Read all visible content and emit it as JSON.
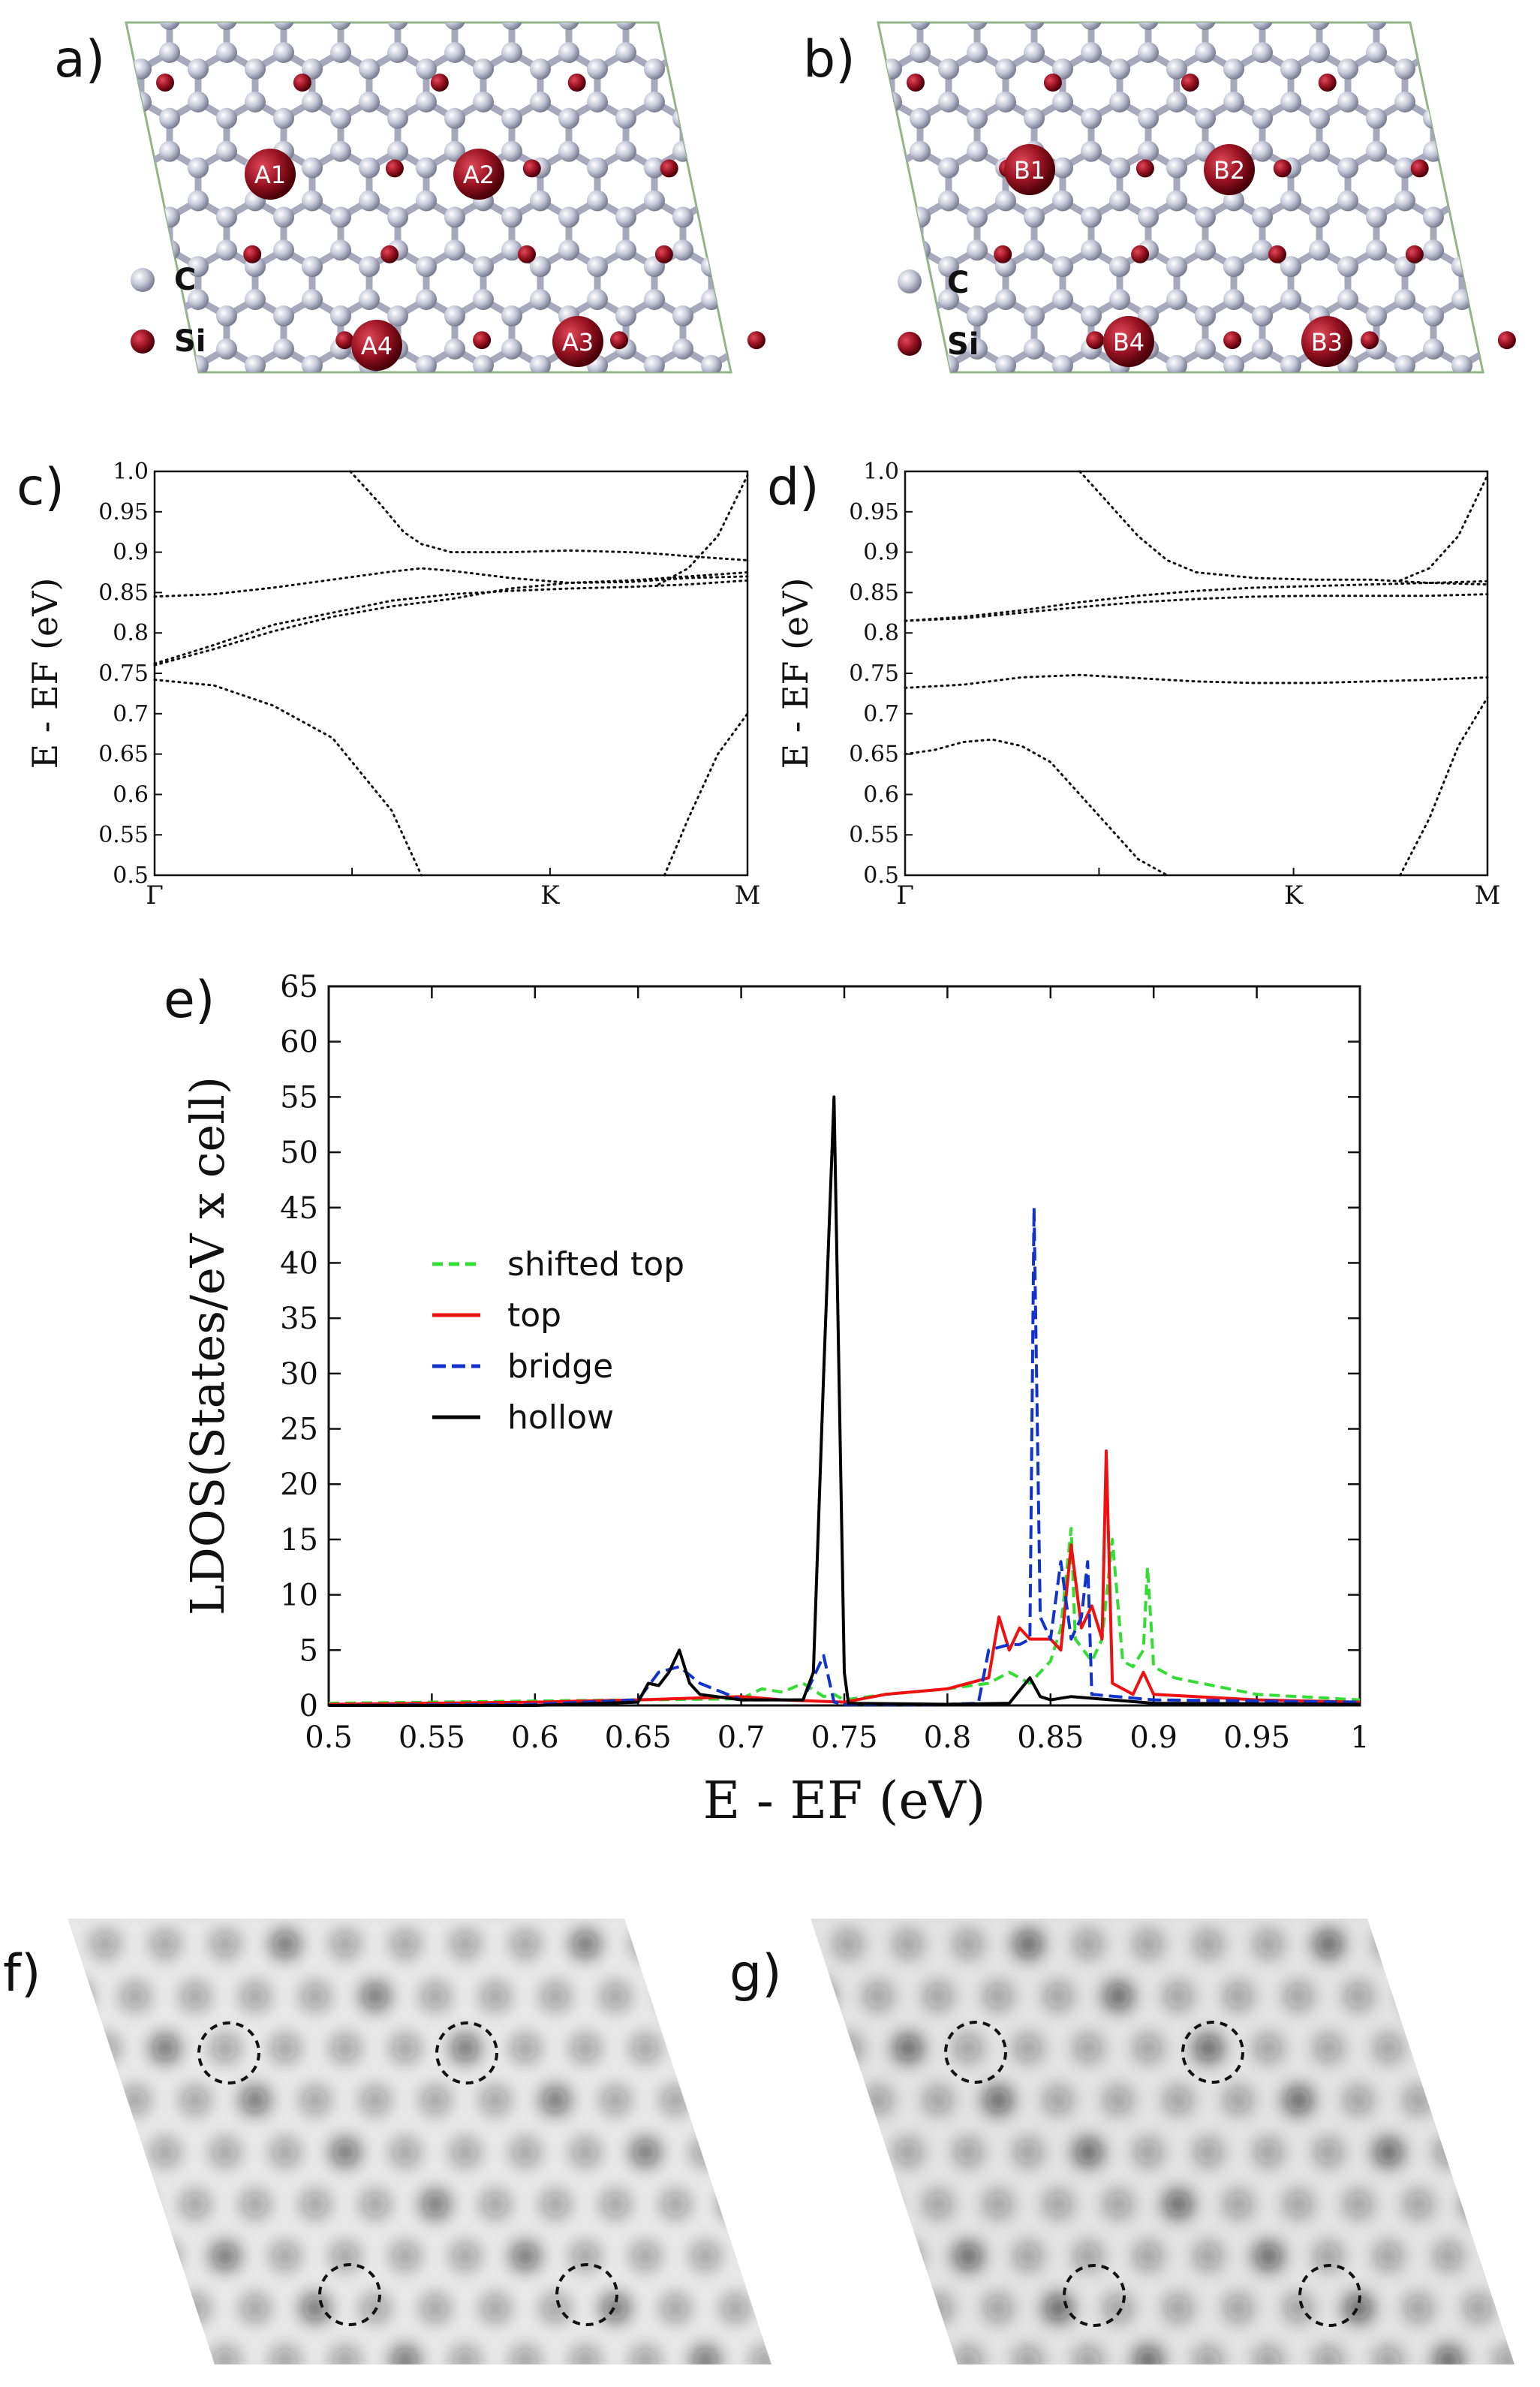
{
  "panels": {
    "a": {
      "label": "a)",
      "sites": [
        "A1",
        "A2",
        "A3",
        "A4"
      ],
      "legend": [
        "C",
        "Si"
      ]
    },
    "b": {
      "label": "b)",
      "sites": [
        "B1",
        "B2",
        "B3",
        "B4"
      ],
      "legend": [
        "C",
        "Si"
      ]
    },
    "c": {
      "label": "c)"
    },
    "d": {
      "label": "d)"
    },
    "e": {
      "label": "e)"
    },
    "f": {
      "label": "f)"
    },
    "g": {
      "label": "g)"
    }
  },
  "colors": {
    "carbon": "#b9bccc",
    "silicon": "#8e0f1e",
    "cell_border": "#93b489",
    "shifted_top": "#33dd33",
    "top": "#ee1111",
    "bridge": "#1133cc",
    "hollow": "#000000"
  },
  "chart_data": [
    {
      "id": "c",
      "type": "line",
      "title": "",
      "xlabel": "",
      "ylabel": "E - EF (eV)",
      "x_ticks": [
        "Γ",
        "K",
        "M"
      ],
      "x_tick_positions": [
        0,
        0.667,
        1.0
      ],
      "ylim": [
        0.5,
        1.0
      ],
      "y_ticks": [
        "0.5",
        "0.55",
        "0.6",
        "0.65",
        "0.7",
        "0.75",
        "0.8",
        "0.85",
        "0.9",
        "0.95",
        "1.0"
      ],
      "series": [
        {
          "name": "band1",
          "x": [
            0,
            0.1,
            0.2,
            0.3,
            0.4,
            0.45
          ],
          "y": [
            0.742,
            0.735,
            0.71,
            0.67,
            0.58,
            0.5
          ]
        },
        {
          "name": "band2",
          "x": [
            0,
            0.1,
            0.2,
            0.3,
            0.4,
            0.5,
            0.6,
            0.7,
            0.8,
            0.9,
            1.0
          ],
          "y": [
            0.762,
            0.785,
            0.81,
            0.825,
            0.84,
            0.848,
            0.852,
            0.855,
            0.857,
            0.86,
            0.865
          ]
        },
        {
          "name": "band3",
          "x": [
            0,
            0.1,
            0.2,
            0.3,
            0.4,
            0.5,
            0.6,
            0.7,
            0.8,
            0.9,
            1.0
          ],
          "y": [
            0.76,
            0.78,
            0.802,
            0.82,
            0.833,
            0.842,
            0.855,
            0.862,
            0.865,
            0.87,
            0.875
          ]
        },
        {
          "name": "band4",
          "x": [
            0,
            0.1,
            0.2,
            0.3,
            0.4,
            0.45,
            0.5,
            0.6,
            0.7,
            0.8,
            0.9,
            1.0
          ],
          "y": [
            0.845,
            0.848,
            0.856,
            0.866,
            0.876,
            0.88,
            0.877,
            0.868,
            0.862,
            0.863,
            0.868,
            0.87
          ]
        },
        {
          "name": "band5",
          "x": [
            0.33,
            0.38,
            0.42,
            0.45,
            0.5,
            0.6,
            0.7,
            0.8,
            0.85,
            0.9,
            1.0
          ],
          "y": [
            1.0,
            0.96,
            0.925,
            0.91,
            0.9,
            0.9,
            0.902,
            0.9,
            0.898,
            0.895,
            0.89
          ]
        },
        {
          "name": "band6",
          "x": [
            0.85,
            0.9,
            0.95,
            1.0
          ],
          "y": [
            0.86,
            0.88,
            0.92,
            0.995
          ]
        },
        {
          "name": "band7",
          "x": [
            0.86,
            0.9,
            0.95,
            1.0
          ],
          "y": [
            0.5,
            0.57,
            0.65,
            0.7
          ]
        }
      ]
    },
    {
      "id": "d",
      "type": "line",
      "title": "",
      "xlabel": "",
      "ylabel": "E - EF (eV)",
      "x_ticks": [
        "Γ",
        "K",
        "M"
      ],
      "x_tick_positions": [
        0,
        0.667,
        1.0
      ],
      "ylim": [
        0.5,
        1.0
      ],
      "y_ticks": [
        "0.5",
        "0.55",
        "0.6",
        "0.65",
        "0.7",
        "0.75",
        "0.8",
        "0.85",
        "0.9",
        "0.95",
        "1.0"
      ],
      "series": [
        {
          "name": "band1",
          "x": [
            0,
            0.05,
            0.1,
            0.15,
            0.2,
            0.25,
            0.3,
            0.35,
            0.4,
            0.45
          ],
          "y": [
            0.65,
            0.655,
            0.665,
            0.668,
            0.66,
            0.64,
            0.6,
            0.56,
            0.52,
            0.5
          ]
        },
        {
          "name": "band2",
          "x": [
            0,
            0.1,
            0.2,
            0.3,
            0.4,
            0.5,
            0.6,
            0.7,
            0.8,
            0.9,
            1.0
          ],
          "y": [
            0.732,
            0.736,
            0.745,
            0.748,
            0.744,
            0.74,
            0.738,
            0.738,
            0.74,
            0.742,
            0.745
          ]
        },
        {
          "name": "band3",
          "x": [
            0,
            0.1,
            0.2,
            0.3,
            0.4,
            0.5,
            0.6,
            0.7,
            0.8,
            0.9,
            1.0
          ],
          "y": [
            0.815,
            0.818,
            0.825,
            0.832,
            0.838,
            0.842,
            0.845,
            0.846,
            0.846,
            0.846,
            0.848
          ]
        },
        {
          "name": "band4",
          "x": [
            0,
            0.1,
            0.2,
            0.3,
            0.4,
            0.5,
            0.6,
            0.7,
            0.8,
            0.9,
            1.0
          ],
          "y": [
            0.815,
            0.82,
            0.828,
            0.838,
            0.846,
            0.852,
            0.856,
            0.858,
            0.86,
            0.862,
            0.864
          ]
        },
        {
          "name": "band5",
          "x": [
            0.3,
            0.35,
            0.4,
            0.45,
            0.5,
            0.6,
            0.7,
            0.8,
            0.9,
            1.0
          ],
          "y": [
            1.0,
            0.96,
            0.92,
            0.89,
            0.875,
            0.868,
            0.866,
            0.866,
            0.862,
            0.86
          ]
        },
        {
          "name": "band6",
          "x": [
            0.85,
            0.9,
            0.95,
            1.0
          ],
          "y": [
            0.865,
            0.88,
            0.92,
            0.995
          ]
        },
        {
          "name": "band7",
          "x": [
            0.85,
            0.9,
            0.95,
            1.0
          ],
          "y": [
            0.5,
            0.57,
            0.66,
            0.72
          ]
        }
      ]
    },
    {
      "id": "e",
      "type": "line",
      "title": "",
      "xlabel": "E - EF (eV)",
      "ylabel": "LDOS(States/eV x cell)",
      "xlim": [
        0.5,
        1.0
      ],
      "ylim": [
        0,
        65
      ],
      "x_ticks": [
        "0.5",
        "0.55",
        "0.6",
        "0.65",
        "0.7",
        "0.75",
        "0.8",
        "0.85",
        "0.9",
        "0.95",
        "1"
      ],
      "y_ticks": [
        "0",
        "5",
        "10",
        "15",
        "20",
        "25",
        "30",
        "35",
        "40",
        "45",
        "50",
        "55",
        "60",
        "65"
      ],
      "legend": [
        "shifted top",
        "top",
        "bridge",
        "hollow"
      ],
      "legend_position": "center-left",
      "series": [
        {
          "name": "shifted top",
          "x": [
            0.5,
            0.65,
            0.7,
            0.71,
            0.72,
            0.73,
            0.74,
            0.745,
            0.75,
            0.77,
            0.8,
            0.82,
            0.83,
            0.84,
            0.85,
            0.855,
            0.86,
            0.862,
            0.87,
            0.875,
            0.88,
            0.885,
            0.89,
            0.895,
            0.897,
            0.9,
            0.91,
            0.95,
            1.0
          ],
          "y": [
            0.2,
            0.5,
            0.6,
            1.5,
            1.2,
            2.0,
            0.8,
            1.0,
            0.5,
            1.0,
            1.5,
            2.0,
            3.0,
            2.0,
            4.0,
            7.0,
            16.0,
            6.0,
            4.0,
            6.0,
            15.0,
            4.0,
            3.5,
            5.0,
            12.5,
            3.5,
            2.5,
            1.0,
            0.5
          ]
        },
        {
          "name": "top",
          "x": [
            0.5,
            0.6,
            0.65,
            0.7,
            0.72,
            0.75,
            0.77,
            0.8,
            0.82,
            0.825,
            0.83,
            0.835,
            0.84,
            0.85,
            0.855,
            0.86,
            0.865,
            0.87,
            0.875,
            0.877,
            0.88,
            0.89,
            0.895,
            0.9,
            0.95,
            1.0
          ],
          "y": [
            0.1,
            0.3,
            0.5,
            0.8,
            0.5,
            0.3,
            1.0,
            1.5,
            2.5,
            8.0,
            5.0,
            7.0,
            6.0,
            6.0,
            5.0,
            14.5,
            7.0,
            9.0,
            6.0,
            23.0,
            2.0,
            1.0,
            3.0,
            1.0,
            0.5,
            0.3
          ]
        },
        {
          "name": "bridge",
          "x": [
            0.5,
            0.6,
            0.65,
            0.66,
            0.67,
            0.68,
            0.7,
            0.73,
            0.74,
            0.745,
            0.75,
            0.8,
            0.815,
            0.82,
            0.83,
            0.835,
            0.84,
            0.842,
            0.845,
            0.85,
            0.855,
            0.86,
            0.865,
            0.868,
            0.87,
            0.9,
            1.0
          ],
          "y": [
            0.0,
            0.1,
            0.5,
            3.0,
            3.5,
            2.0,
            0.5,
            0.5,
            4.5,
            0.3,
            0.1,
            0.1,
            0.2,
            5.0,
            5.5,
            5.5,
            6.0,
            45.0,
            8.0,
            6.0,
            13.0,
            6.0,
            8.0,
            13.0,
            1.0,
            0.5,
            0.3
          ]
        },
        {
          "name": "hollow",
          "x": [
            0.5,
            0.6,
            0.65,
            0.655,
            0.66,
            0.665,
            0.67,
            0.675,
            0.68,
            0.7,
            0.73,
            0.735,
            0.74,
            0.745,
            0.75,
            0.752,
            0.8,
            0.83,
            0.84,
            0.845,
            0.85,
            0.86,
            0.9,
            1.0
          ],
          "y": [
            0.0,
            0.0,
            0.3,
            2.0,
            1.8,
            3.0,
            5.0,
            2.0,
            1.0,
            0.5,
            0.5,
            3.0,
            30.0,
            55.0,
            3.0,
            0.2,
            0.1,
            0.2,
            2.5,
            0.8,
            0.5,
            0.8,
            0.2,
            0.1
          ]
        }
      ]
    }
  ]
}
